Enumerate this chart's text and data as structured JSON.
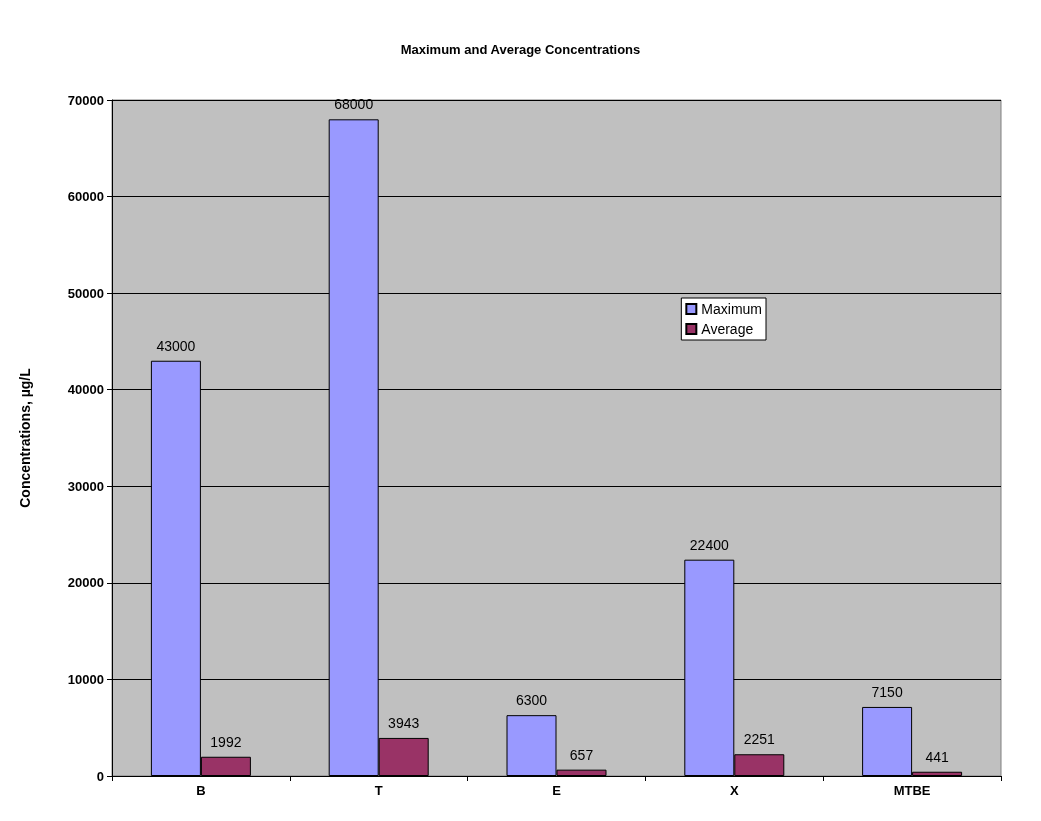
{
  "chart_data": {
    "type": "bar",
    "title": "Maximum and Average Concentrations",
    "ylabel": "Concentrations, µg/L",
    "categories": [
      "B",
      "T",
      "E",
      "X",
      "MTBE"
    ],
    "series": [
      {
        "name": "Maximum",
        "color": "#9999ff",
        "values": [
          43000,
          68000,
          6300,
          22400,
          7150
        ]
      },
      {
        "name": "Average",
        "color": "#993366",
        "values": [
          1992,
          3943,
          657,
          2251,
          441
        ]
      }
    ],
    "ylim": [
      0,
      70000
    ],
    "yticks": [
      0,
      10000,
      20000,
      30000,
      40000,
      50000,
      60000,
      70000
    ],
    "grid": "y",
    "legend": "right",
    "data_labels": true
  }
}
